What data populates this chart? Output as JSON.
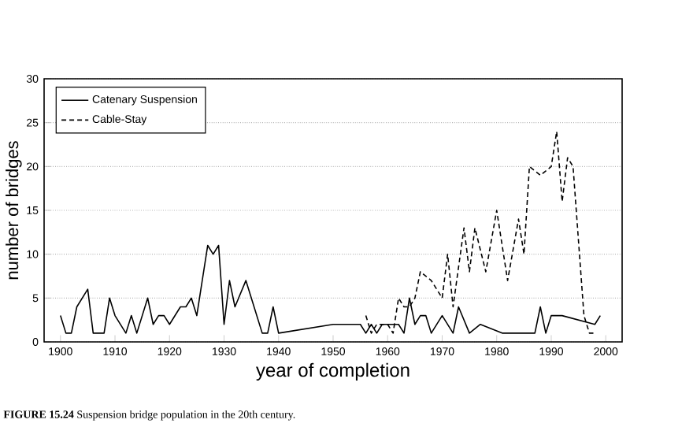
{
  "chart_data": {
    "type": "line",
    "xlabel": "year of completion",
    "ylabel": "number of bridges",
    "annotations": [
      "**FIGURE 15.24**   Suspension bridge population in the 20th century."
    ],
    "xlim": [
      1897,
      2003
    ],
    "ylim": [
      0,
      30
    ],
    "xticks": [
      1900,
      1910,
      1920,
      1930,
      1940,
      1950,
      1960,
      1970,
      1980,
      1990,
      2000
    ],
    "yticks": [
      0,
      5,
      10,
      15,
      20,
      25,
      30
    ],
    "grid": "y",
    "legend": "top left",
    "marker": "none",
    "series": [
      {
        "name": "Catenary Suspension",
        "color": "#000000",
        "line_style": "solid",
        "x": [
          1900,
          1901,
          1902,
          1903,
          1905,
          1906,
          1908,
          1909,
          1910,
          1912,
          1913,
          1914,
          1916,
          1917,
          1918,
          1919,
          1920,
          1922,
          1923,
          1924,
          1925,
          1927,
          1928,
          1929,
          1930,
          1931,
          1932,
          1934,
          1935,
          1937,
          1938,
          1939,
          1940,
          1950,
          1955,
          1956,
          1957,
          1958,
          1959,
          1962,
          1963,
          1964,
          1965,
          1966,
          1967,
          1968,
          1970,
          1972,
          1973,
          1975,
          1977,
          1981,
          1987,
          1988,
          1989,
          1990,
          1992,
          1998,
          1999
        ],
        "values": [
          3,
          1,
          1,
          4,
          6,
          1,
          1,
          5,
          3,
          1,
          3,
          1,
          5,
          2,
          3,
          3,
          2,
          4,
          4,
          5,
          3,
          11,
          10,
          11,
          2,
          7,
          4,
          7,
          5,
          1,
          1,
          4,
          1,
          2,
          2,
          1,
          2,
          1,
          2,
          2,
          1,
          5,
          2,
          3,
          3,
          1,
          3,
          1,
          4,
          1,
          2,
          1,
          1,
          4,
          1,
          3,
          3,
          2,
          3
        ]
      },
      {
        "name": "Cable-Stay",
        "color": "#000000",
        "line_style": "dashed",
        "x": [
          1956,
          1957,
          1958,
          1960,
          1961,
          1962,
          1963,
          1964,
          1965,
          1966,
          1968,
          1970,
          1971,
          1972,
          1974,
          1975,
          1976,
          1978,
          1980,
          1982,
          1984,
          1985,
          1986,
          1988,
          1990,
          1991,
          1992,
          1993,
          1994,
          1996,
          1997,
          1998
        ],
        "values": [
          3,
          1,
          2,
          2,
          1,
          5,
          4,
          4,
          5,
          8,
          7,
          5,
          10,
          4,
          13,
          8,
          13,
          8,
          15,
          7,
          14,
          10,
          20,
          19,
          20,
          24,
          16,
          21,
          20,
          3,
          1,
          1
        ]
      }
    ]
  }
}
